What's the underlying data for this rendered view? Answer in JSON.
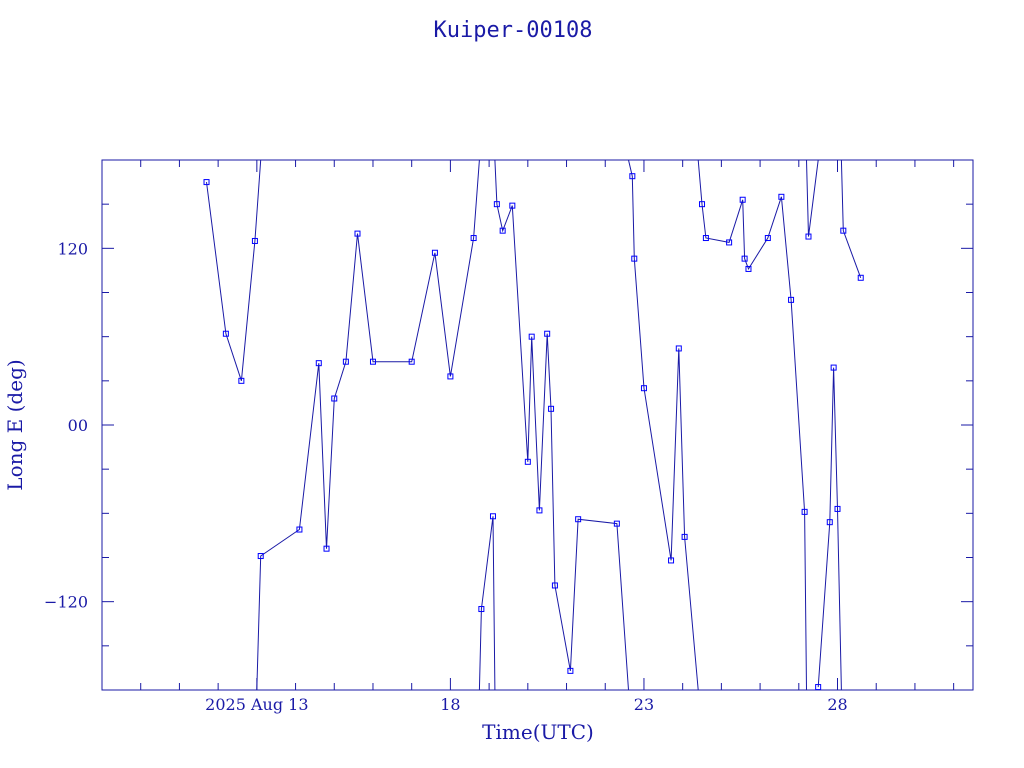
{
  "chart_data": {
    "type": "line",
    "title": "Kuiper-00108",
    "xlabel": "Time(UTC)",
    "ylabel": "Long E (deg)",
    "x_unit": "days of August 2025 (UTC)",
    "xlim": [
      9.0,
      31.5
    ],
    "ylim": [
      -180,
      180
    ],
    "x_ticks": [
      {
        "value": 13,
        "label": "2025 Aug 13"
      },
      {
        "value": 18,
        "label": "18"
      },
      {
        "value": 23,
        "label": "23"
      },
      {
        "value": 28,
        "label": "28"
      }
    ],
    "y_ticks": [
      {
        "value": 120,
        "label": "120"
      },
      {
        "value": 0,
        "label": "00"
      },
      {
        "value": -120,
        "label": "−120"
      }
    ],
    "grid": false,
    "series": [
      {
        "values": [
          [
            11.7,
            165
          ],
          [
            12.2,
            62
          ],
          [
            12.6,
            30
          ],
          [
            12.95,
            125
          ],
          [
            13.1,
            180
          ],
          null,
          [
            13.0,
            -180
          ],
          [
            13.1,
            -89
          ],
          [
            14.1,
            -71
          ],
          [
            14.6,
            42
          ],
          [
            14.8,
            -84
          ],
          [
            15.0,
            18
          ],
          [
            15.3,
            43
          ],
          [
            15.6,
            130
          ],
          [
            16.0,
            43
          ],
          [
            17.0,
            43
          ],
          [
            17.6,
            117
          ],
          [
            18.0,
            33
          ],
          [
            18.6,
            127
          ],
          [
            18.75,
            180
          ],
          null,
          [
            18.75,
            -180
          ],
          [
            18.8,
            -125
          ],
          [
            19.1,
            -62
          ],
          [
            19.15,
            -180
          ],
          null,
          [
            19.15,
            180
          ],
          [
            19.2,
            150
          ],
          [
            19.35,
            132
          ],
          [
            19.6,
            149
          ],
          [
            20.0,
            -25
          ],
          [
            20.1,
            60
          ],
          [
            20.3,
            -58
          ],
          [
            20.5,
            62
          ],
          [
            20.6,
            11
          ],
          [
            20.7,
            -109
          ],
          [
            21.1,
            -167
          ],
          [
            21.3,
            -64
          ],
          [
            22.3,
            -67
          ],
          [
            22.6,
            -180
          ],
          null,
          [
            22.6,
            180
          ],
          [
            22.7,
            169
          ],
          [
            22.75,
            113
          ],
          [
            23.0,
            25
          ],
          [
            23.7,
            -92
          ],
          [
            23.9,
            52
          ],
          [
            24.05,
            -76
          ],
          [
            24.4,
            -180
          ],
          null,
          [
            24.4,
            180
          ],
          [
            24.5,
            150
          ],
          [
            24.6,
            127
          ],
          [
            25.2,
            124
          ],
          [
            25.55,
            153
          ],
          [
            25.6,
            113
          ],
          [
            25.7,
            106
          ],
          [
            26.2,
            127
          ],
          [
            26.55,
            155
          ],
          [
            26.8,
            85
          ],
          [
            27.15,
            -59
          ],
          [
            27.2,
            -180
          ],
          null,
          [
            27.2,
            180
          ],
          [
            27.25,
            128
          ],
          [
            27.5,
            180
          ],
          null,
          [
            27.5,
            -178
          ],
          [
            27.8,
            -66
          ],
          [
            27.9,
            39
          ],
          [
            28.0,
            -57
          ],
          [
            28.1,
            -180
          ],
          null,
          [
            28.1,
            180
          ],
          [
            28.15,
            132
          ],
          [
            28.6,
            100
          ]
        ]
      }
    ]
  },
  "colors": {
    "axis": "#1a1aa6",
    "line": "#1a1aa6",
    "marker": "#0000ff"
  }
}
